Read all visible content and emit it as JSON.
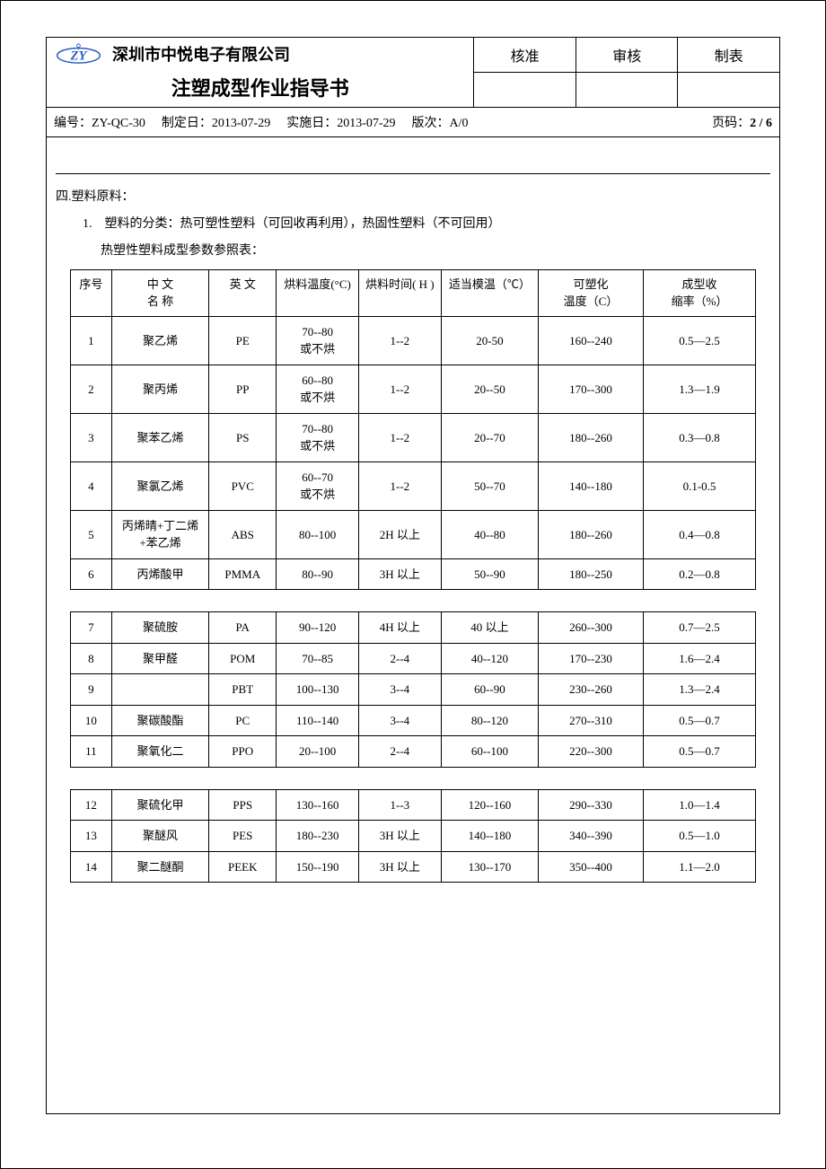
{
  "header": {
    "company": "深圳市中悦电子有限公司",
    "doc_title": "注塑成型作业指导书",
    "approval": {
      "col1": "核准",
      "col2": "审核",
      "col3": "制表"
    },
    "meta": {
      "number_label": "编号：",
      "number": "ZY-QC-30",
      "made_label": "制定日：",
      "made": "2013-07-29",
      "impl_label": "实施日：",
      "impl": "2013-07-29",
      "ver_label": "版次：",
      "ver": "A/0",
      "page_label": "页码：",
      "page": "2 / 6"
    }
  },
  "section4": {
    "title": "四.塑料原料：",
    "line1": "1.　塑料的分类：热可塑性塑料（可回收再利用），热固性塑料（不可回用）",
    "line2": "热塑性塑料成型参数参照表：",
    "columns": {
      "seq": "序号",
      "cn": "中 文\n名 称",
      "en": "英 文",
      "dry_temp": "烘料温度(°C)",
      "dry_time": "烘料时间( H )",
      "mold_temp": "适当模温（℃）",
      "plast_temp": "可塑化\n温度（C）",
      "shrink": "成型收\n缩率（%）"
    },
    "rows1": [
      {
        "seq": "1",
        "cn": "聚乙烯",
        "en": "PE",
        "dt": "70--80\n或不烘",
        "dh": "1--2",
        "mt": "20-50",
        "pt": "160--240",
        "sh": "0.5—2.5"
      },
      {
        "seq": "2",
        "cn": "聚丙烯",
        "en": "PP",
        "dt": "60--80\n或不烘",
        "dh": "1--2",
        "mt": "20--50",
        "pt": "170--300",
        "sh": "1.3—1.9"
      },
      {
        "seq": "3",
        "cn": "聚苯乙烯",
        "en": "PS",
        "dt": "70--80\n或不烘",
        "dh": "1--2",
        "mt": "20--70",
        "pt": "180--260",
        "sh": "0.3—0.8"
      },
      {
        "seq": "4",
        "cn": "聚氯乙烯",
        "en": "PVC",
        "dt": "60--70\n或不烘",
        "dh": "1--2",
        "mt": "50--70",
        "pt": "140--180",
        "sh": "0.1-0.5"
      },
      {
        "seq": "5",
        "cn": "丙烯晴+丁二烯\n+苯乙烯",
        "en": "ABS",
        "dt": "80--100",
        "dh": "2H 以上",
        "mt": "40--80",
        "pt": "180--260",
        "sh": "0.4—0.8"
      },
      {
        "seq": "6",
        "cn": "丙烯酸甲",
        "en": "PMMA",
        "dt": "80--90",
        "dh": "3H 以上",
        "mt": "50--90",
        "pt": "180--250",
        "sh": "0.2—0.8"
      }
    ],
    "rows2": [
      {
        "seq": "7",
        "cn": "聚硫胺",
        "en": "PA",
        "dt": "90--120",
        "dh": "4H 以上",
        "mt": "40 以上",
        "pt": "260--300",
        "sh": "0.7—2.5"
      },
      {
        "seq": "8",
        "cn": "聚甲醛",
        "en": "POM",
        "dt": "70--85",
        "dh": "2--4",
        "mt": "40--120",
        "pt": "170--230",
        "sh": "1.6—2.4"
      },
      {
        "seq": "9",
        "cn": "",
        "en": "PBT",
        "dt": "100--130",
        "dh": "3--4",
        "mt": "60--90",
        "pt": "230--260",
        "sh": "1.3—2.4"
      },
      {
        "seq": "10",
        "cn": "聚碳酸酯",
        "en": "PC",
        "dt": "110--140",
        "dh": "3--4",
        "mt": "80--120",
        "pt": "270--310",
        "sh": "0.5—0.7"
      },
      {
        "seq": "11",
        "cn": "聚氧化二",
        "en": "PPO",
        "dt": "20--100",
        "dh": "2--4",
        "mt": "60--100",
        "pt": "220--300",
        "sh": "0.5—0.7"
      }
    ],
    "rows3": [
      {
        "seq": "12",
        "cn": "聚硫化甲",
        "en": "PPS",
        "dt": "130--160",
        "dh": "1--3",
        "mt": "120--160",
        "pt": "290--330",
        "sh": "1.0—1.4"
      },
      {
        "seq": "13",
        "cn": "聚醚风",
        "en": "PES",
        "dt": "180--230",
        "dh": "3H 以上",
        "mt": "140--180",
        "pt": "340--390",
        "sh": "0.5—1.0"
      },
      {
        "seq": "14",
        "cn": "聚二醚酮",
        "en": "PEEK",
        "dt": "150--190",
        "dh": "3H 以上",
        "mt": "130--170",
        "pt": "350--400",
        "sh": "1.1—2.0"
      }
    ]
  },
  "style": {
    "border_color": "#000000",
    "bg_color": "#ffffff",
    "logo_color": "#2a5fbf",
    "font_main": "SimSun",
    "font_title": "SimHei"
  }
}
